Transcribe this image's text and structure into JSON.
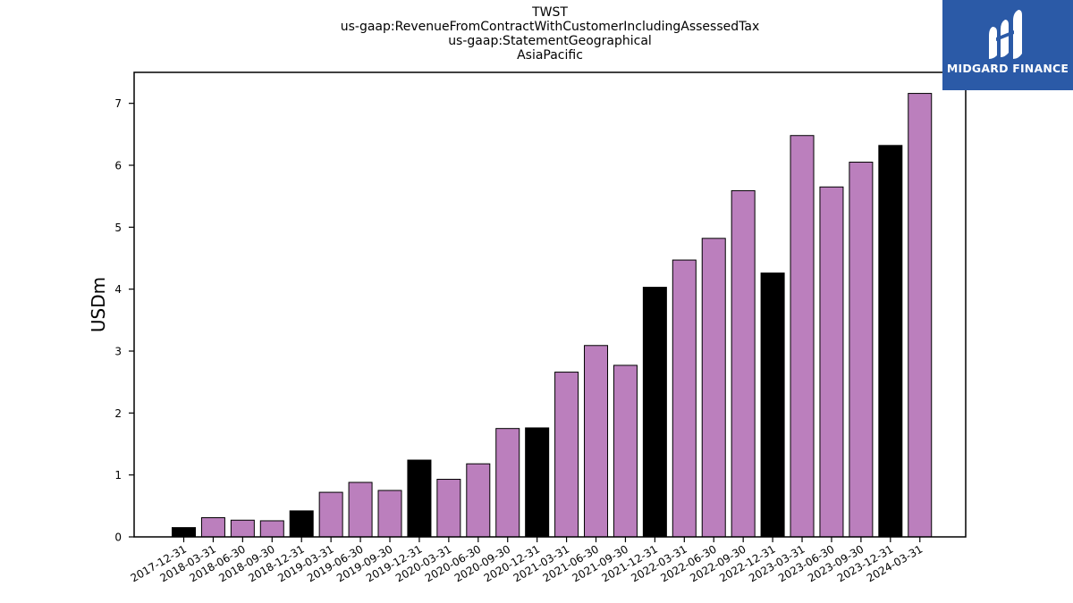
{
  "title": {
    "lines": [
      "TWST",
      "us-gaap:RevenueFromContractWithCustomerIncludingAssessedTax",
      "us-gaap:StatementGeographical",
      "AsiaPacific"
    ]
  },
  "logo": {
    "text": "MIDGARD FINANCE",
    "background": "#2b5aa7"
  },
  "colors": {
    "quarter": "#bb7fbd",
    "year_end": "#000000",
    "edge": "#000000"
  },
  "chart_data": {
    "type": "bar",
    "title": "TWST\nus-gaap:RevenueFromContractWithCustomerIncludingAssessedTax\nus-gaap:StatementGeographical\nAsiaPacific",
    "xlabel": "",
    "ylabel": "USDm",
    "ylim": [
      0,
      7.5
    ],
    "yticks": [
      0,
      1,
      2,
      3,
      4,
      5,
      6,
      7
    ],
    "grid": false,
    "categories": [
      "2017-12-31",
      "2018-03-31",
      "2018-06-30",
      "2018-09-30",
      "2018-12-31",
      "2019-03-31",
      "2019-06-30",
      "2019-09-30",
      "2019-12-31",
      "2020-03-31",
      "2020-06-30",
      "2020-09-30",
      "2020-12-31",
      "2021-03-31",
      "2021-06-30",
      "2021-09-30",
      "2021-12-31",
      "2022-03-31",
      "2022-06-30",
      "2022-09-30",
      "2022-12-31",
      "2023-03-31",
      "2023-06-30",
      "2023-09-30",
      "2023-12-31",
      "2024-03-31"
    ],
    "values": [
      0.15,
      0.31,
      0.27,
      0.26,
      0.42,
      0.72,
      0.88,
      0.75,
      1.24,
      0.93,
      1.18,
      1.75,
      1.76,
      2.66,
      3.09,
      2.77,
      4.03,
      4.47,
      4.82,
      5.59,
      4.26,
      6.48,
      5.65,
      6.05,
      6.32,
      7.16
    ],
    "year_end": [
      true,
      false,
      false,
      false,
      true,
      false,
      false,
      false,
      true,
      false,
      false,
      false,
      true,
      false,
      false,
      false,
      true,
      false,
      false,
      false,
      true,
      false,
      false,
      false,
      true,
      false
    ]
  }
}
